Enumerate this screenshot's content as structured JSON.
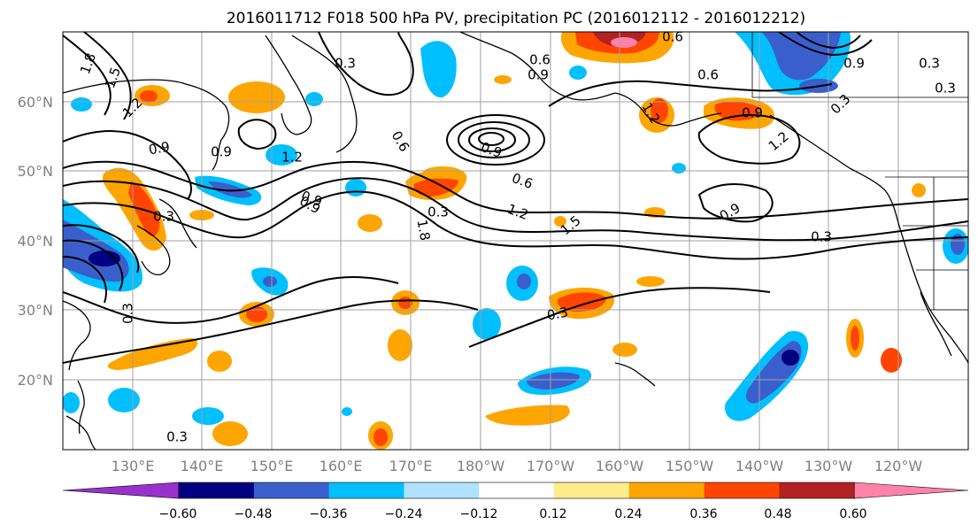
{
  "title": "2016011712 F018 500 hPa PV, precipitation PC (2016012112 - 2016012212)",
  "lat_labels": [
    "60°N",
    "50°N",
    "40°N",
    "30°N",
    "20°N"
  ],
  "lon_labels": [
    "130°E",
    "140°E",
    "150°E",
    "160°E",
    "170°E",
    "180°W",
    "170°W",
    "160°W",
    "150°W",
    "140°W",
    "130°W",
    "120°W"
  ],
  "colorbar": {
    "colors": [
      "#9932cc",
      "#000080",
      "#3a5fcd",
      "#00bfff",
      "#b0e2ff",
      "#ffffff",
      "#ffec8b",
      "#ffa500",
      "#ff4500",
      "#b22222",
      "#ff82ab"
    ],
    "tick_labels": [
      "−0.60",
      "−0.48",
      "−0.36",
      "−0.24",
      "−0.12",
      "0.12",
      "0.24",
      "0.36",
      "0.48",
      "0.60"
    ]
  },
  "contour_labels": [
    "1.8",
    "1.5",
    "1.2",
    "0.3",
    "0.9",
    "0.6",
    "0.9",
    "0.3",
    "1.2",
    "1.8",
    "0.6",
    "0.9",
    "0.3",
    "1.2",
    "0.9",
    "0.3",
    "0.6",
    "0.9",
    "0.6",
    "1.2",
    "0.3",
    "0.3",
    "1.5",
    "0.9",
    "0.6",
    "0.9",
    "1.2",
    "0.3",
    "0.9",
    "0.3",
    "0.3",
    "0.9",
    "0.3"
  ]
}
